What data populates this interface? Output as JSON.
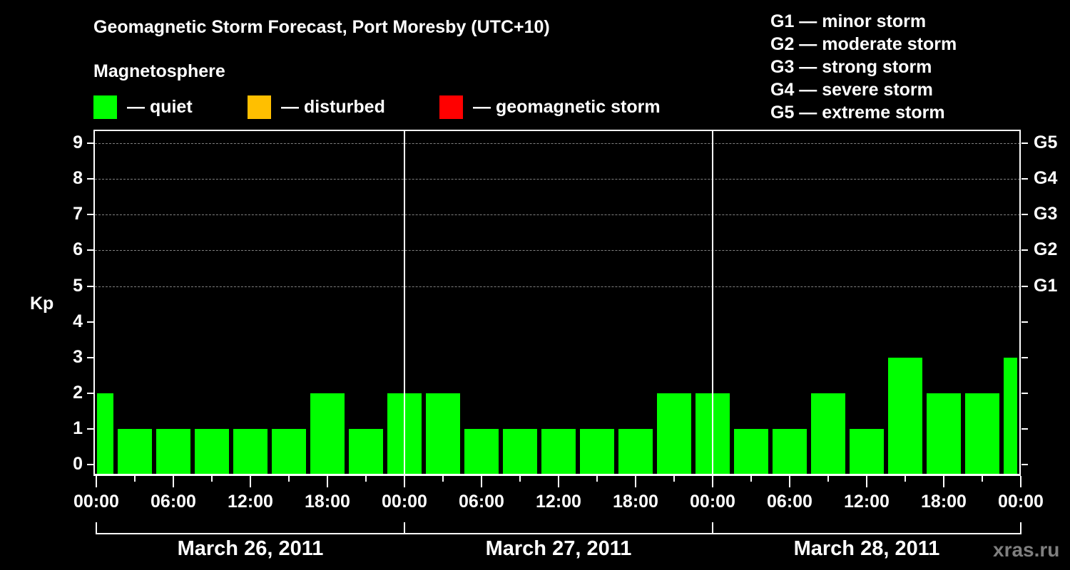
{
  "header": {
    "title": "Geomagnetic Storm Forecast, Port Moresby (UTC+10)",
    "subtitle": "Magnetosphere"
  },
  "legend": [
    {
      "label": "— quiet",
      "color": "#00ff00"
    },
    {
      "label": "— disturbed",
      "color": "#ffbf00"
    },
    {
      "label": "— geomagnetic storm",
      "color": "#ff0000"
    }
  ],
  "storm_scale": [
    "G1 — minor storm",
    "G2 — moderate storm",
    "G3 — strong storm",
    "G4 — severe storm",
    "G5 — extreme storm"
  ],
  "watermark": "xras.ru",
  "chart_data": {
    "type": "bar",
    "title": "Geomagnetic Storm Forecast, Port Moresby (UTC+10)",
    "subtitle": "Magnetosphere",
    "xlabel": "",
    "ylabel": "Kp",
    "ylim": [
      0,
      9
    ],
    "yticks": [
      "0",
      "1",
      "2",
      "3",
      "4",
      "5",
      "6",
      "7",
      "8",
      "9"
    ],
    "right_axis_labels": [
      {
        "kp": 5,
        "label": "G1"
      },
      {
        "kp": 6,
        "label": "G2"
      },
      {
        "kp": 7,
        "label": "G3"
      },
      {
        "kp": 8,
        "label": "G4"
      },
      {
        "kp": 9,
        "label": "G5"
      }
    ],
    "grid": "dashed horizontal at Kp 5-9",
    "xtick_labels": [
      "00:00",
      "06:00",
      "12:00",
      "18:00",
      "00:00",
      "06:00",
      "12:00",
      "18:00",
      "00:00",
      "06:00",
      "12:00",
      "18:00",
      "00:00"
    ],
    "days": [
      "March 26, 2011",
      "March 27, 2011",
      "March 28, 2011"
    ],
    "categories": [
      "Mar 26 00:00",
      "Mar 26 03:00",
      "Mar 26 06:00",
      "Mar 26 09:00",
      "Mar 26 12:00",
      "Mar 26 15:00",
      "Mar 26 18:00",
      "Mar 26 21:00",
      "Mar 27 00:00",
      "Mar 27 03:00",
      "Mar 27 06:00",
      "Mar 27 09:00",
      "Mar 27 12:00",
      "Mar 27 15:00",
      "Mar 27 18:00",
      "Mar 27 21:00",
      "Mar 28 00:00",
      "Mar 28 03:00",
      "Mar 28 06:00",
      "Mar 28 09:00",
      "Mar 28 12:00",
      "Mar 28 15:00",
      "Mar 28 18:00",
      "Mar 28 21:00",
      "Mar 29 00:00"
    ],
    "values": [
      2,
      1,
      1,
      1,
      1,
      1,
      2,
      1,
      2,
      2,
      1,
      1,
      1,
      1,
      1,
      2,
      2,
      1,
      1,
      2,
      1,
      3,
      2,
      2,
      3
    ],
    "status": [
      "quiet",
      "quiet",
      "quiet",
      "quiet",
      "quiet",
      "quiet",
      "quiet",
      "quiet",
      "quiet",
      "quiet",
      "quiet",
      "quiet",
      "quiet",
      "quiet",
      "quiet",
      "quiet",
      "quiet",
      "quiet",
      "quiet",
      "quiet",
      "quiet",
      "quiet",
      "quiet",
      "quiet",
      "quiet"
    ],
    "legend": [
      "quiet",
      "disturbed",
      "geomagnetic storm"
    ],
    "legend_position": "top"
  }
}
